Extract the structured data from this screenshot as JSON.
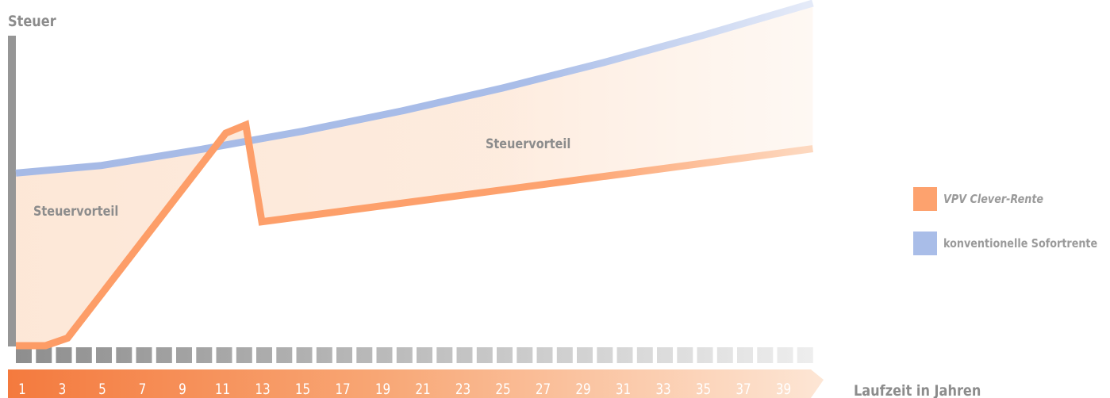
{
  "chart_data": {
    "type": "line",
    "ylabel": "Steuer",
    "xlabel": "Laufzeit in Jahren",
    "x_ticks": [
      1,
      3,
      5,
      7,
      9,
      11,
      13,
      15,
      17,
      19,
      21,
      23,
      25,
      27,
      29,
      31,
      33,
      35,
      37,
      39
    ],
    "area_labels": [
      "Steuervorteil",
      "Steuervorteil"
    ],
    "series": [
      {
        "name": "VPV Clever-Rente",
        "color": "#fda26e",
        "x": [
          1,
          2.2,
          3.3,
          11.2,
          12.2,
          13.0,
          40.5
        ],
        "y": [
          0,
          0,
          0.025,
          0.698,
          0.725,
          0.407,
          0.647
        ]
      },
      {
        "name": "konventionelle Sofortrente",
        "color": "#a9bde8",
        "x": [
          1,
          5,
          10,
          15,
          20,
          25,
          30,
          35,
          40.5
        ],
        "y": [
          0.567,
          0.592,
          0.645,
          0.704,
          0.771,
          0.846,
          0.929,
          1.019,
          1.125
        ]
      }
    ]
  },
  "colors": {
    "axis_gray": "#969696",
    "tick_label": "#ffffff",
    "ribbon_start": "#f47a3e",
    "ribbon_end": "#fde6d5",
    "fill": "#fde6d5"
  }
}
